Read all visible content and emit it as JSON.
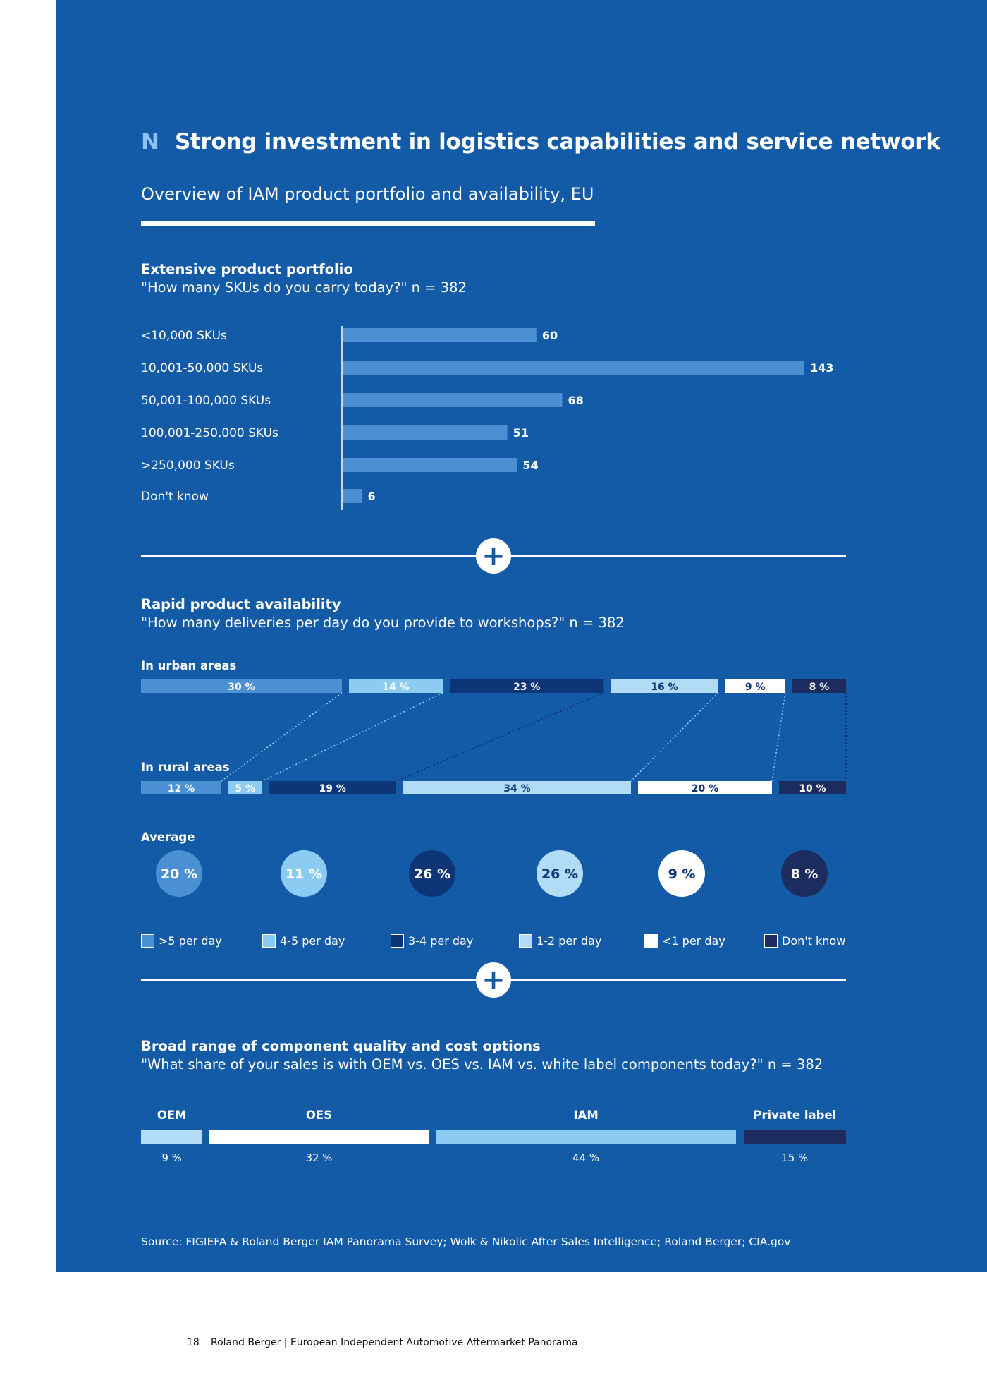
{
  "header": {
    "letter": "N",
    "title": "Strong investment in logistics capabilities and service network",
    "subtitle": "Overview of IAM product portfolio and availability, EU"
  },
  "section1": {
    "title": "Extensive product portfolio",
    "question": "\"How many SKUs do you carry today?\" n = 382"
  },
  "section2": {
    "title": "Rapid product availability",
    "question": "\"How many deliveries per day do you provide to workshops?\" n = 382",
    "urban_label": "In urban areas",
    "rural_label": "In rural areas",
    "average_label": "Average"
  },
  "section3": {
    "title": "Broad range of component quality and cost options",
    "question": "\"What share of your sales is with OEM vs. OES vs. IAM vs. white label components today?\" n = 382"
  },
  "colors": {
    "background": "#135aa7",
    "c1": "#4a90d2",
    "c2": "#8ccbf2",
    "c3": "#0e3578",
    "c4": "#b2dcf6",
    "c5": "#ffffff",
    "c6": "#1c2c5e"
  },
  "chart_data": [
    {
      "type": "bar",
      "orientation": "horizontal",
      "title": "Extensive product portfolio",
      "categories": [
        "<10,000 SKUs",
        "10,001-50,000 SKUs",
        "50,001-100,000 SKUs",
        "100,001-250,000 SKUs",
        ">250,000 SKUs",
        "Don't know"
      ],
      "values": [
        60,
        143,
        68,
        51,
        54,
        6
      ],
      "xlim": [
        0,
        143
      ]
    },
    {
      "type": "bar",
      "orientation": "horizontal",
      "stacked": true,
      "percent": true,
      "title": "Rapid product availability",
      "categories": [
        "In urban areas",
        "In rural areas"
      ],
      "series": [
        {
          "name": ">5 per day",
          "color": "#4a90d2",
          "values": [
            30,
            12
          ]
        },
        {
          "name": "4-5 per day",
          "color": "#8ccbf2",
          "values": [
            14,
            5
          ]
        },
        {
          "name": "3-4 per day",
          "color": "#0e3578",
          "values": [
            23,
            19
          ]
        },
        {
          "name": "1-2 per day",
          "color": "#b2dcf6",
          "values": [
            16,
            34
          ]
        },
        {
          "name": "<1 per day",
          "color": "#ffffff",
          "values": [
            9,
            20
          ]
        },
        {
          "name": "Don't know",
          "color": "#1c2c5e",
          "values": [
            8,
            10
          ]
        }
      ],
      "average": [
        20,
        11,
        26,
        26,
        9,
        8
      ],
      "legend": "bottom"
    },
    {
      "type": "bar",
      "orientation": "horizontal",
      "stacked": true,
      "percent": true,
      "title": "Broad range of component quality and cost options",
      "categories": [
        "OEM",
        "OES",
        "IAM",
        "Private label"
      ],
      "values": [
        9,
        32,
        44,
        15
      ],
      "colors": [
        "#b2dcf6",
        "#ffffff",
        "#8ccbf2",
        "#1c2c5e"
      ]
    }
  ],
  "source": "Source: FIGIEFA & Roland Berger IAM Panorama Survey; Wolk & Nikolic After Sales Intelligence; Roland Berger; CIA.gov",
  "footer": {
    "page_number": "18",
    "text": "Roland Berger | European Independent Automotive Aftermarket Panorama"
  }
}
